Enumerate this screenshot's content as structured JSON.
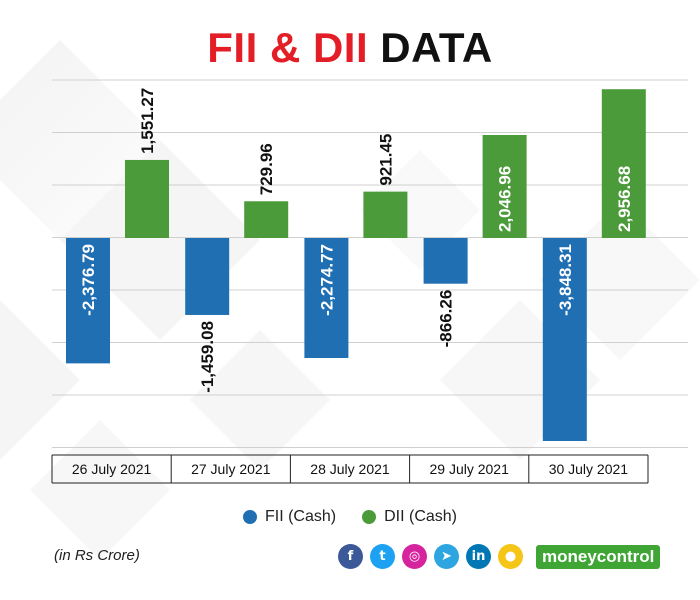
{
  "title": {
    "part1": "FII & DII",
    "part2": "DATA"
  },
  "colors": {
    "fii": "#1f6fb2",
    "dii": "#4c9b3a",
    "title_red": "#e41e26",
    "brand": "#3fa535"
  },
  "chart_data": {
    "type": "bar",
    "categories": [
      "26 July 2021",
      "27 July 2021",
      "28 July 2021",
      "29 July 2021",
      "30 July 2021"
    ],
    "series": [
      {
        "name": "FII (Cash)",
        "values": [
          -2376.79,
          -1459.08,
          -2274.77,
          -866.26,
          -3848.31
        ]
      },
      {
        "name": "DII (Cash)",
        "values": [
          1551.27,
          729.96,
          921.45,
          2046.96,
          2956.68
        ]
      }
    ],
    "data_labels": {
      "FII (Cash)": [
        "-2,376.79",
        "-1,459.08",
        "-2,274.77",
        "-866.26",
        "-3,848.31"
      ],
      "DII (Cash)": [
        "1,551.27",
        "729.96",
        "921.45",
        "2,046.96",
        "2,956.68"
      ]
    },
    "ylim": [
      -3900,
      3100
    ],
    "grid": true,
    "legend": "bottom"
  },
  "legend": [
    {
      "label": "FII (Cash)",
      "color": "#1f6fb2"
    },
    {
      "label": "DII (Cash)",
      "color": "#4c9b3a"
    }
  ],
  "unit_note": "(in Rs Crore)",
  "socials": [
    {
      "icon": "facebook-icon",
      "glyph": "f",
      "color": "#3b5998"
    },
    {
      "icon": "twitter-icon",
      "glyph": "t",
      "color": "#1da1f2"
    },
    {
      "icon": "instagram-icon",
      "glyph": "◎",
      "color": "#d6249f"
    },
    {
      "icon": "telegram-icon",
      "glyph": "➤",
      "color": "#2ca5e0"
    },
    {
      "icon": "linkedin-icon",
      "glyph": "in",
      "color": "#0077b5"
    },
    {
      "icon": "koo-icon",
      "glyph": "●",
      "color": "#f5c518"
    }
  ],
  "brand": "moneycontrol"
}
